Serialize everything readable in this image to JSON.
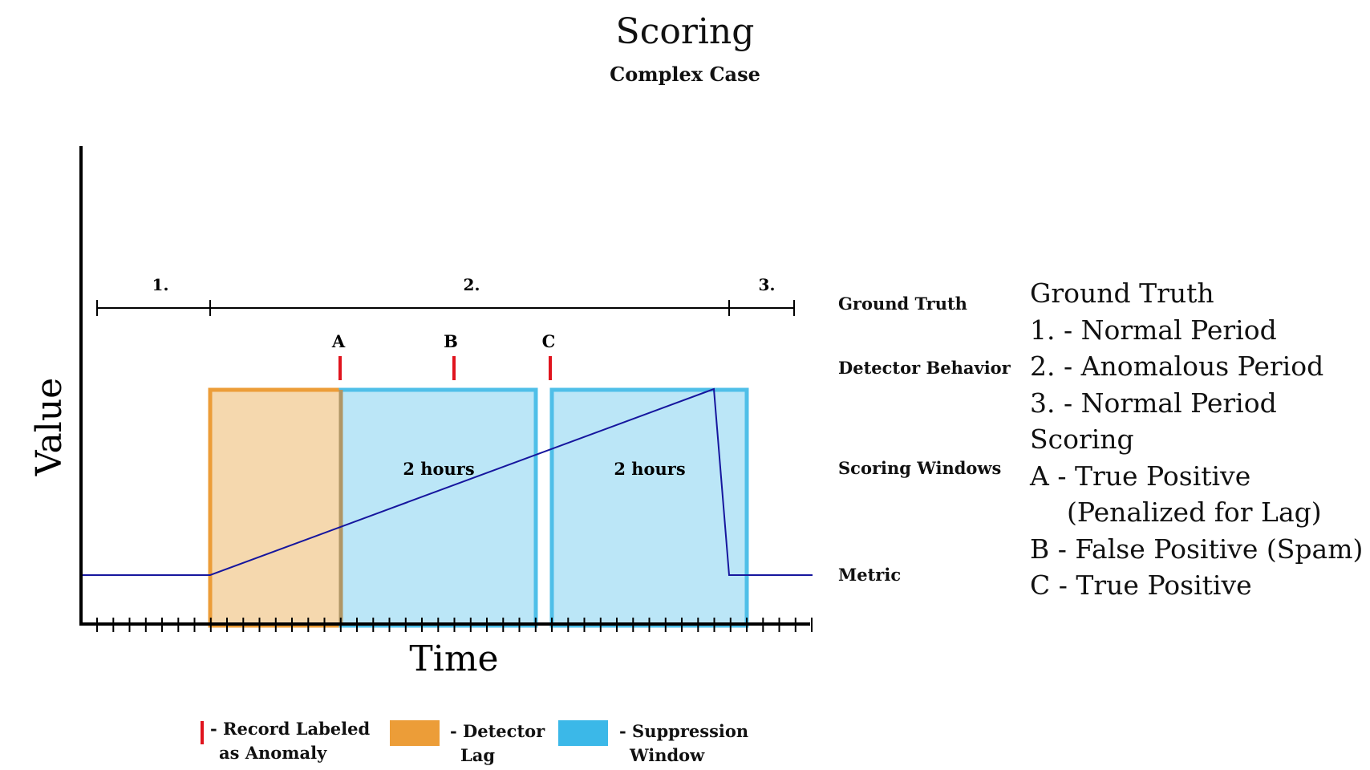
{
  "title": "Scoring",
  "subtitle": "Complex Case",
  "axes": {
    "y_label": "Value",
    "x_label": "Time"
  },
  "ground_truth": {
    "periods": [
      {
        "label": "1."
      },
      {
        "label": "2."
      },
      {
        "label": "3."
      }
    ]
  },
  "detections": [
    {
      "label": "A"
    },
    {
      "label": "B"
    },
    {
      "label": "C"
    }
  ],
  "windows": [
    {
      "label": "2 hours"
    },
    {
      "label": "2 hours"
    }
  ],
  "row_labels": {
    "ground_truth": "Ground Truth",
    "detector_behavior": "Detector Behavior",
    "scoring_windows": "Scoring Windows",
    "metric": "Metric"
  },
  "right_panel": {
    "gt_heading": "Ground Truth",
    "gt_items": [
      "1. - Normal Period",
      "2. - Anomalous Period",
      "3. - Normal Period"
    ],
    "scoring_heading": "Scoring",
    "scoring_items": [
      "A - True Positive",
      "(Penalized for Lag)",
      "B - False Positive (Spam)",
      "C - True Positive"
    ]
  },
  "legend": {
    "record": {
      "line1": "- Record Labeled",
      "line2": "as Anomaly"
    },
    "lag": {
      "line1": "- Detector",
      "line2": "Lag"
    },
    "suppression": {
      "line1": "- Suppression",
      "line2": "Window"
    }
  },
  "colors": {
    "detector_lag": "#EC9D38",
    "suppression_window": "#3BB8E8",
    "record_mark": "#E0141E",
    "metric_line": "#16169E"
  }
}
